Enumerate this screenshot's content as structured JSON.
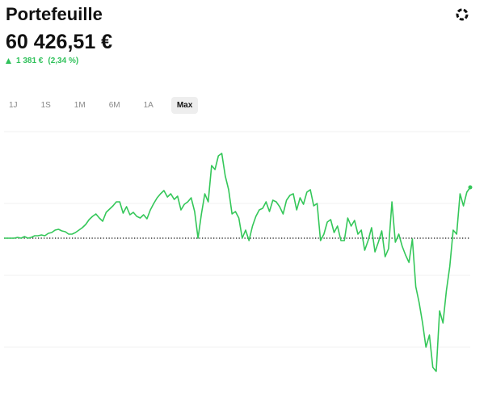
{
  "header": {
    "title": "Portefeuille",
    "amount": "60 426,51 €",
    "change_amount": "1 381 €",
    "change_percent": "(2,34 %)"
  },
  "ranges": {
    "options": [
      "1J",
      "1S",
      "1M",
      "6M",
      "1A",
      "Max"
    ],
    "selected": 5
  },
  "chart_data": {
    "type": "line",
    "color": "#34c759",
    "baseline": 0,
    "ylim": [
      -175,
      135
    ],
    "gridlines": [
      132,
      43,
      -46,
      -135
    ],
    "values": [
      0,
      0,
      0,
      0,
      1,
      0,
      2,
      0,
      1,
      3,
      3,
      4,
      3,
      6,
      7,
      10,
      11,
      9,
      8,
      5,
      5,
      7,
      10,
      13,
      17,
      23,
      27,
      30,
      25,
      21,
      32,
      36,
      40,
      45,
      45,
      31,
      39,
      29,
      32,
      27,
      25,
      29,
      24,
      35,
      43,
      50,
      55,
      59,
      51,
      55,
      48,
      52,
      35,
      42,
      45,
      50,
      33,
      0,
      30,
      55,
      45,
      90,
      85,
      102,
      105,
      77,
      60,
      30,
      33,
      25,
      0,
      10,
      -3,
      15,
      27,
      35,
      37,
      45,
      33,
      47,
      45,
      39,
      30,
      47,
      53,
      55,
      35,
      50,
      42,
      57,
      60,
      40,
      43,
      -3,
      5,
      20,
      23,
      7,
      15,
      -3,
      -3,
      25,
      15,
      22,
      5,
      10,
      -15,
      -3,
      13,
      -17,
      -5,
      9,
      -23,
      -13,
      45,
      -5,
      5,
      -10,
      -21,
      -30,
      -1,
      -60,
      -80,
      -105,
      -135,
      -120,
      -160,
      -165,
      -90,
      -105,
      -65,
      -35,
      10,
      5,
      55,
      40,
      57,
      63
    ]
  }
}
